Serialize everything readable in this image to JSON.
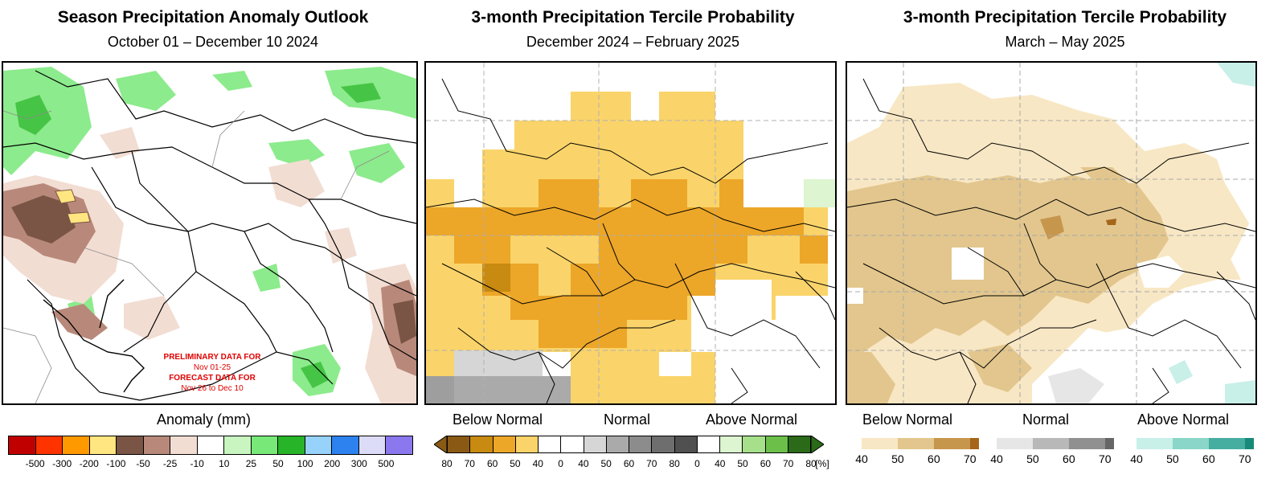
{
  "panels": [
    {
      "title": "Season Precipitation Anomaly Outlook",
      "subtitle": "October 01 – December 10 2024",
      "legend_title": "Anomaly (mm)",
      "legend_colors": [
        "#c00000",
        "#ff3300",
        "#ff9900",
        "#ffe680",
        "#7a5545",
        "#b8897a",
        "#f2ddd3",
        "#ffffff",
        "#c8f5c0",
        "#78e878",
        "#28b428",
        "#96d2fa",
        "#2d82f0",
        "#dcdcf8",
        "#8c78ee"
      ],
      "legend_ticks": [
        "-500",
        "-300",
        "-200",
        "-100",
        "-50",
        "-25",
        "-10",
        "10",
        "25",
        "50",
        "100",
        "200",
        "300",
        "500"
      ],
      "notes": {
        "prelim_label": "PRELIMINARY DATA FOR",
        "prelim_dates": "Nov 01-25",
        "forecast_label": "FORECAST DATA FOR",
        "forecast_dates": "Nov 26 to Dec 10"
      }
    },
    {
      "title": "3-month Precipitation Tercile Probability",
      "subtitle": "December 2024 – February 2025",
      "legend_labels": {
        "below": "Below Normal",
        "normal": "Normal",
        "above": "Above Normal"
      },
      "legend_colors": [
        "#8a5a14",
        "#c88a10",
        "#eca628",
        "#fad46a",
        "#ffffff",
        "#ffffff",
        "#d6d6d6",
        "#aaaaaa",
        "#8c8c8c",
        "#6e6e6e",
        "#505050",
        "#ffffff",
        "#ddf5d0",
        "#a6e08a",
        "#6cc04a",
        "#2a6a18"
      ],
      "legend_ticks": [
        "80",
        "70",
        "60",
        "50",
        "40",
        "0",
        "40",
        "50",
        "60",
        "70",
        "80",
        "0",
        "40",
        "50",
        "60",
        "70",
        "80"
      ],
      "legend_unit": "[%]"
    },
    {
      "title": "3-month Precipitation Tercile Probability",
      "subtitle": "March – May 2025",
      "legend_labels": {
        "below": "Below Normal",
        "normal": "Normal",
        "above": "Above Normal"
      },
      "below_colors": [
        "#f8e7c4",
        "#e2c68d",
        "#c7964d",
        "#a5651a"
      ],
      "below_ticks": [
        "40",
        "50",
        "60",
        "70"
      ],
      "normal_colors": [
        "#e6e6e6",
        "#b8b8b8",
        "#909090",
        "#666666"
      ],
      "normal_ticks": [
        "40",
        "50",
        "60",
        "70"
      ],
      "above_colors": [
        "#c8efe8",
        "#8ad6c8",
        "#46aea0",
        "#178a7a"
      ],
      "above_ticks": [
        "40",
        "50",
        "60",
        "70"
      ]
    }
  ]
}
